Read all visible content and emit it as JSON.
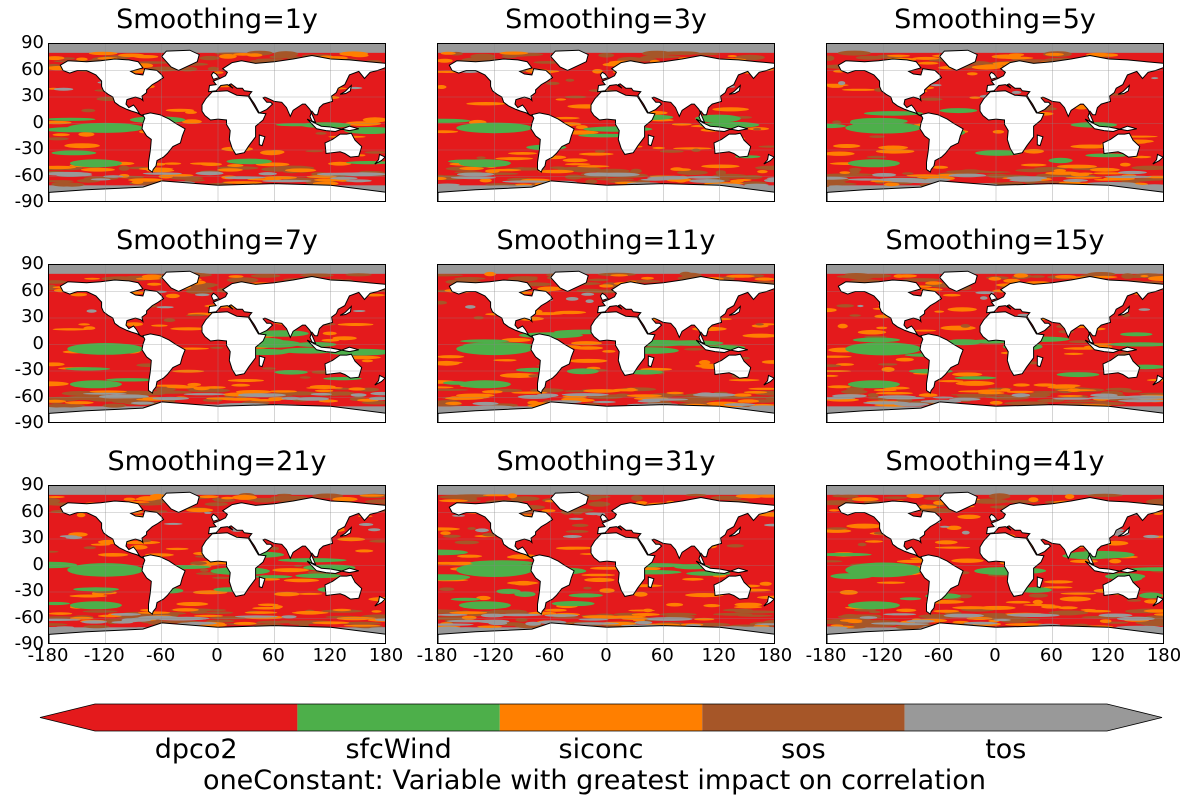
{
  "panels": [
    {
      "title": "Smoothing=1y"
    },
    {
      "title": "Smoothing=3y"
    },
    {
      "title": "Smoothing=5y"
    },
    {
      "title": "Smoothing=7y"
    },
    {
      "title": "Smoothing=11y"
    },
    {
      "title": "Smoothing=15y"
    },
    {
      "title": "Smoothing=21y"
    },
    {
      "title": "Smoothing=31y"
    },
    {
      "title": "Smoothing=41y"
    }
  ],
  "axes": {
    "lat_ticks": [
      "90",
      "60",
      "30",
      "0",
      "-30",
      "-60",
      "-90"
    ],
    "lon_ticks": [
      "-180",
      "-120",
      "-60",
      "0",
      "60",
      "120",
      "180"
    ],
    "lat_range": [
      -90,
      90
    ],
    "lon_range": [
      -180,
      180
    ],
    "grid": true
  },
  "colorbar": {
    "title": "oneConstant: Variable with greatest impact on correlation",
    "extend": "both",
    "categories": [
      {
        "label": "dpco2",
        "color": "#e41a1c"
      },
      {
        "label": "sfcWind",
        "color": "#4daf4a"
      },
      {
        "label": "siconc",
        "color": "#ff7f00"
      },
      {
        "label": "sos",
        "color": "#a65628"
      },
      {
        "label": "tos",
        "color": "#999999"
      }
    ]
  },
  "colors": {
    "land": "#ffffff",
    "coastline": "#000000",
    "gridline": "#888888"
  }
}
